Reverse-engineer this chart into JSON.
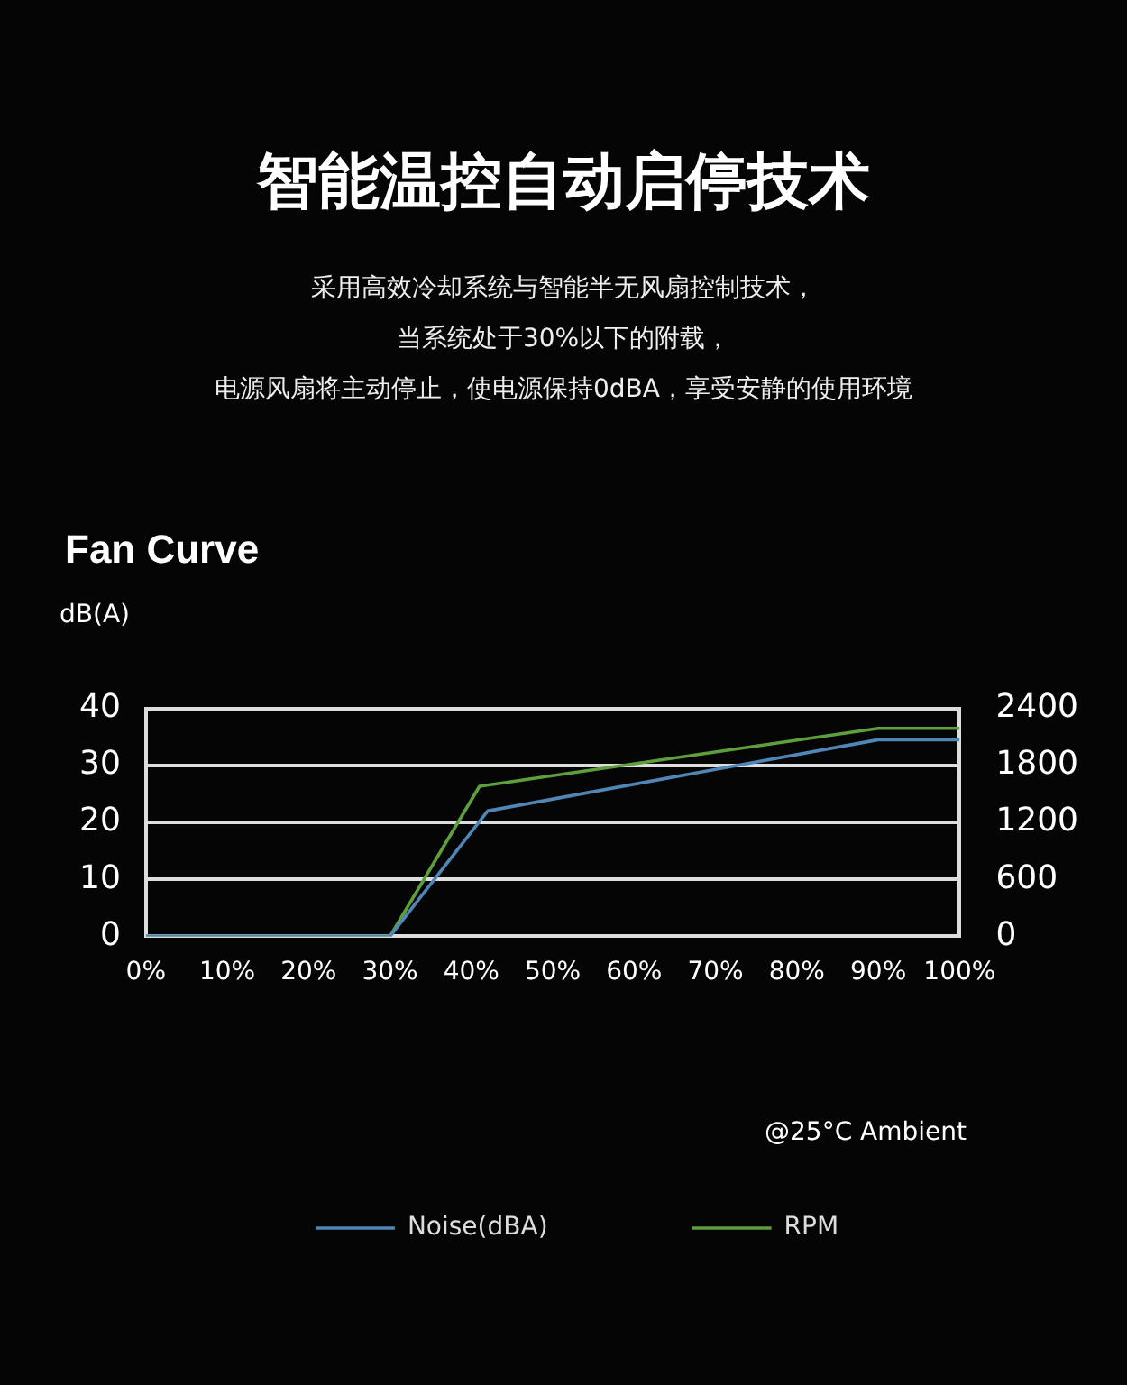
{
  "chart_data": {
    "type": "line",
    "title": "智能温控自动启停技术",
    "subtitle": "采用高效冷却系统与智能半无风扇控制技术，",
    "ylabel": "dB(A)",
    "annotations": [
      "当系统处于30%以下的附载，",
      "电源风扇将主动停止，使电源保持0dBA，享受安静的使用环境",
      "Fan Curve",
      "@25°C Ambient"
    ],
    "series": [
      {
        "name": "Noise(dBA)",
        "color": "#4f86b5",
        "x": [
          0,
          30,
          42,
          90,
          100
        ],
        "values": [
          0,
          0,
          22,
          34.5,
          34.5
        ]
      },
      {
        "name": "RPM",
        "color": "#5e9e3c",
        "axis": "y2",
        "x": [
          0,
          30,
          41,
          90,
          100
        ],
        "values": [
          0,
          0,
          1580,
          2190,
          2190
        ]
      }
    ],
    "xlim": [
      0,
      100
    ],
    "xticks": [
      {
        "value": 0,
        "label": "0%"
      },
      {
        "value": 10,
        "label": "10%"
      },
      {
        "value": 20,
        "label": "20%"
      },
      {
        "value": 30,
        "label": "30%"
      },
      {
        "value": 40,
        "label": "40%"
      },
      {
        "value": 50,
        "label": "50%"
      },
      {
        "value": 60,
        "label": "60%"
      },
      {
        "value": 70,
        "label": "70%"
      },
      {
        "value": 80,
        "label": "80%"
      },
      {
        "value": 90,
        "label": "90%"
      },
      {
        "value": 100,
        "label": "100%"
      }
    ],
    "ylim": [
      0,
      40
    ],
    "yticks": [
      0,
      10,
      20,
      30,
      40
    ],
    "y2lim": [
      0,
      2400
    ],
    "y2ticks": [
      0,
      600,
      1200,
      1800,
      2400
    ],
    "grid": "y",
    "legend": "bottom",
    "marker": "none",
    "line_style": "solid"
  }
}
